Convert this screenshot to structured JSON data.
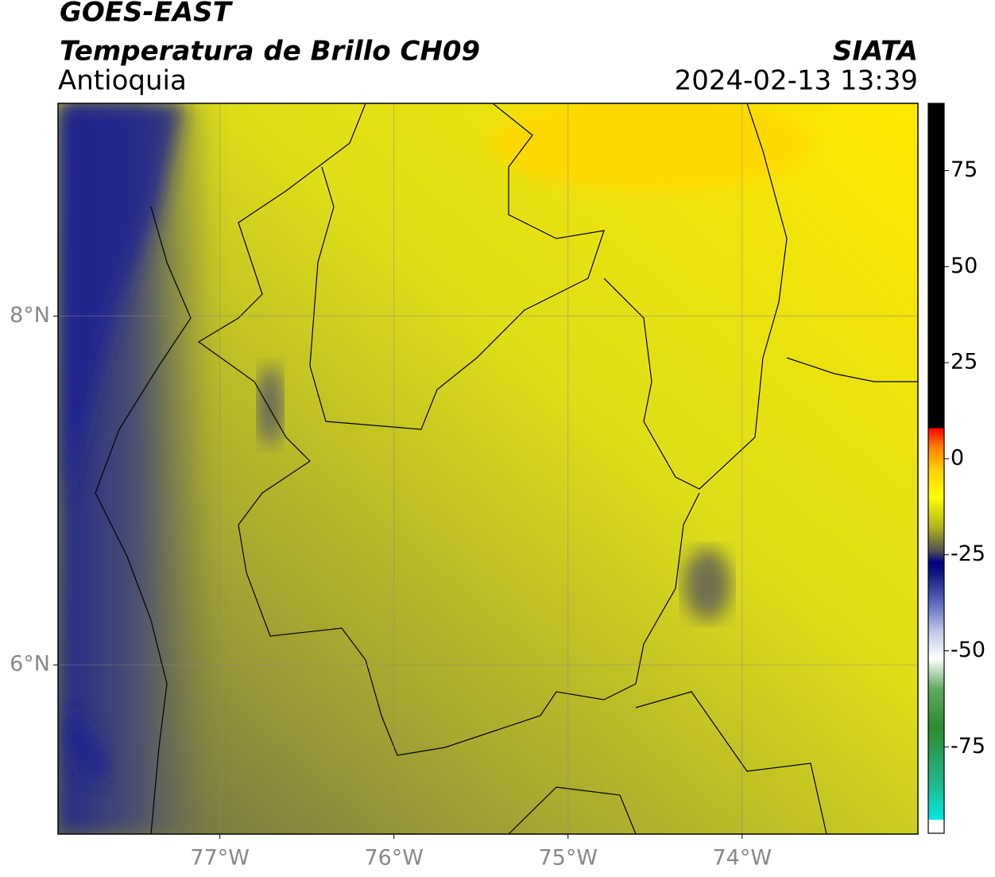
{
  "header": {
    "title": "GOES-EAST",
    "subtitle": "Temperatura de Brillo CH09",
    "region": "Antioquia",
    "source": "SIATA",
    "datetime": "2024-02-13 13:39"
  },
  "map": {
    "lon_range": [
      -77.93,
      -72.99
    ],
    "lat_range": [
      5.03,
      9.22
    ],
    "lon_ticks": [
      {
        "value": -77,
        "label": "77°W"
      },
      {
        "value": -76,
        "label": "76°W"
      },
      {
        "value": -75,
        "label": "75°W"
      },
      {
        "value": -74,
        "label": "74°W"
      }
    ],
    "lat_ticks": [
      {
        "value": 8,
        "label": "8°N"
      },
      {
        "value": 6,
        "label": "6°N"
      }
    ],
    "grid": true
  },
  "colorbar": {
    "range": [
      -97.5,
      92.5
    ],
    "ticks": [
      75,
      50,
      25,
      0,
      -25,
      -50,
      -75
    ],
    "stops": [
      {
        "value": -97.5,
        "color": "#ffffff"
      },
      {
        "value": -94,
        "color": "#ffffff"
      },
      {
        "value": -94,
        "color": "#00e8e0"
      },
      {
        "value": -85,
        "color": "#20b890"
      },
      {
        "value": -70,
        "color": "#2e8b2e"
      },
      {
        "value": -60,
        "color": "#60a860"
      },
      {
        "value": -52,
        "color": "#ffffff"
      },
      {
        "value": -45,
        "color": "#c0c8e8"
      },
      {
        "value": -38,
        "color": "#6070c0"
      },
      {
        "value": -30,
        "color": "#101880"
      },
      {
        "value": -27,
        "color": "#000080"
      },
      {
        "value": -24,
        "color": "#505050"
      },
      {
        "value": -18,
        "color": "#b0b020"
      },
      {
        "value": -10,
        "color": "#ffff00"
      },
      {
        "value": -3,
        "color": "#ffd000"
      },
      {
        "value": 3,
        "color": "#ff8000"
      },
      {
        "value": 8,
        "color": "#ff0000"
      },
      {
        "value": 8,
        "color": "#000000"
      },
      {
        "value": 92.5,
        "color": "#000000"
      }
    ]
  }
}
